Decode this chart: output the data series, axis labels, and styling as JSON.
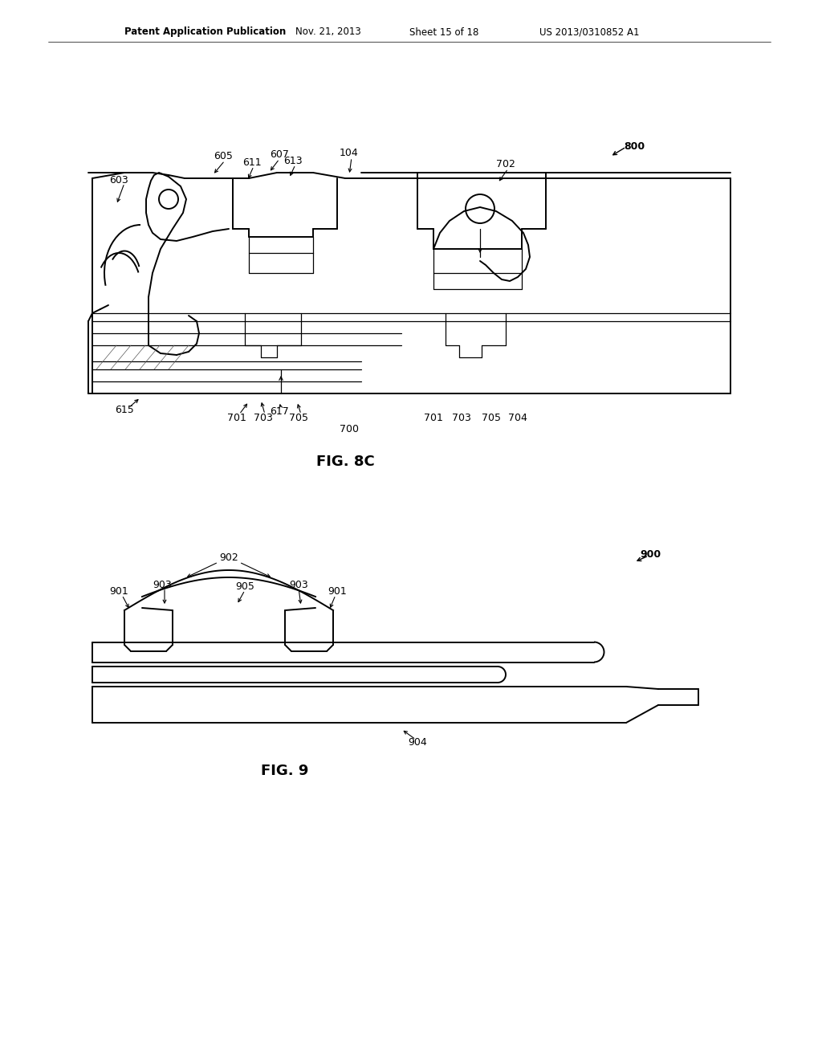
{
  "background_color": "#ffffff",
  "header_text": "Patent Application Publication",
  "header_date": "Nov. 21, 2013",
  "header_sheet": "Sheet 15 of 18",
  "header_patent": "US 2013/0310852 A1",
  "fig8c_label": "FIG. 8C",
  "fig9_label": "FIG. 9"
}
